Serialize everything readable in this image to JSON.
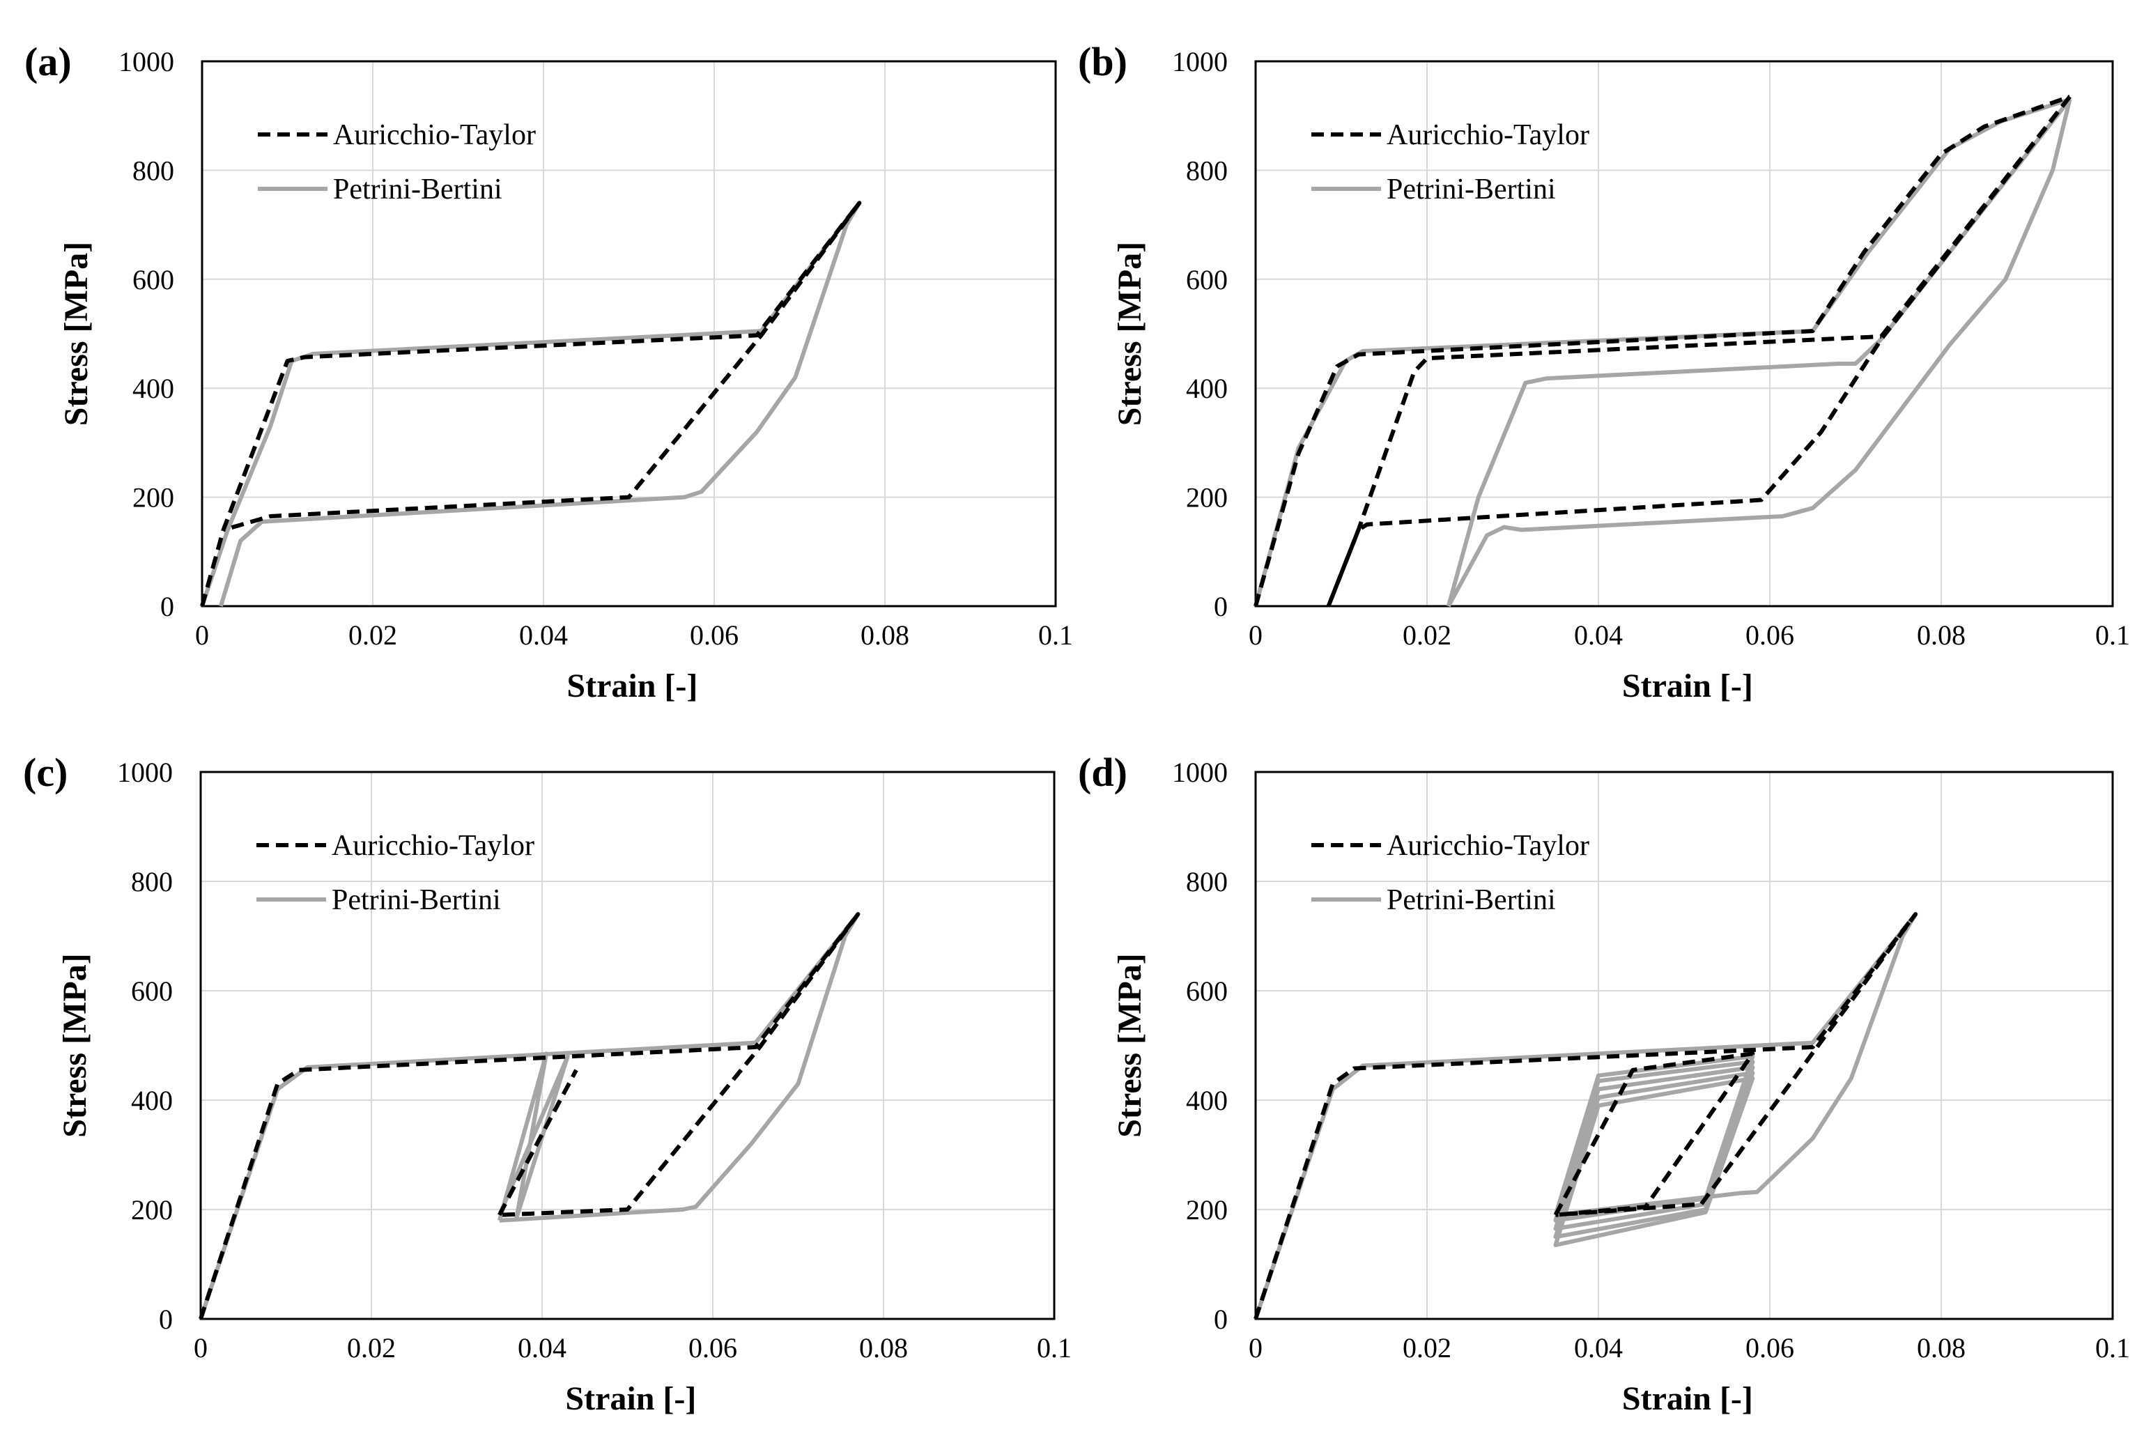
{
  "colors": {
    "auricchio": "#000000",
    "petrini": "#a6a6a6",
    "grid": "#d9d9d9",
    "frame": "#000000"
  },
  "chart_data": [
    {
      "type": "line",
      "panel_label": "(a)",
      "xlabel": "Strain [-]",
      "ylabel": "Stress [MPa]",
      "xlim": [
        0,
        0.1
      ],
      "ylim": [
        0,
        1000
      ],
      "x_ticks": [
        "0",
        "0.02",
        "0.04",
        "0.06",
        "0.08",
        "0.1"
      ],
      "y_ticks": [
        "0",
        "200",
        "400",
        "600",
        "800",
        "1000"
      ],
      "grid": true,
      "legend_position": "top-left",
      "series": [
        {
          "name": "Auricchio-Taylor",
          "style": "dashed",
          "segments": [
            [
              [
                0,
                0
              ],
              [
                0.0025,
                140
              ],
              [
                0.01,
                450
              ],
              [
                0.012,
                457
              ],
              [
                0.065,
                497
              ],
              [
                0.077,
                740
              ],
              [
                0.0655,
                497
              ],
              [
                0.05,
                200
              ],
              [
                0.008,
                165
              ],
              [
                0.0025,
                140
              ]
            ]
          ]
        },
        {
          "name": "Petrini-Bertini",
          "style": "solid",
          "segments": [
            [
              [
                0,
                0
              ],
              [
                0.003,
                140
              ],
              [
                0.008,
                330
              ],
              [
                0.0105,
                450
              ],
              [
                0.013,
                463
              ],
              [
                0.0655,
                505
              ],
              [
                0.077,
                740
              ],
              [
                0.0755,
                700
              ],
              [
                0.0695,
                420
              ],
              [
                0.065,
                320
              ],
              [
                0.0585,
                210
              ],
              [
                0.0565,
                200
              ],
              [
                0.007,
                155
              ],
              [
                0.0045,
                120
              ],
              [
                0.0022,
                0
              ]
            ]
          ]
        }
      ]
    },
    {
      "type": "line",
      "panel_label": "(b)",
      "xlabel": "Strain [-]",
      "ylabel": "Stress [MPa]",
      "xlim": [
        0,
        0.1
      ],
      "ylim": [
        0,
        1000
      ],
      "x_ticks": [
        "0",
        "0.02",
        "0.04",
        "0.06",
        "0.08",
        "0.1"
      ],
      "y_ticks": [
        "0",
        "200",
        "400",
        "600",
        "800",
        "1000"
      ],
      "grid": true,
      "legend_position": "top-left",
      "series": [
        {
          "name": "Auricchio-Taylor",
          "style": "dashed",
          "segments": [
            [
              [
                0,
                0
              ],
              [
                0.005,
                280
              ],
              [
                0.0095,
                440
              ],
              [
                0.012,
                462
              ],
              [
                0.065,
                505
              ],
              [
                0.071,
                650
              ],
              [
                0.08,
                830
              ],
              [
                0.085,
                880
              ],
              [
                0.095,
                935
              ]
            ],
            [
              [
                0.095,
                935
              ],
              [
                0.073,
                490
              ],
              [
                0.066,
                320
              ],
              [
                0.059,
                195
              ],
              [
                0.057,
                193
              ],
              [
                0.013,
                150
              ],
              [
                0.012,
                140
              ],
              [
                0.0085,
                0
              ]
            ],
            [
              [
                0.0085,
                0
              ],
              [
                0.012,
                140
              ],
              [
                0.0185,
                430
              ],
              [
                0.02,
                455
              ],
              [
                0.073,
                495
              ]
            ],
            [
              [
                0.073,
                495
              ],
              [
                0.095,
                935
              ]
            ]
          ]
        },
        {
          "name": "Petrini-Bertini",
          "style": "solid",
          "segments": [
            [
              [
                0,
                0
              ],
              [
                0.005,
                290
              ],
              [
                0.0105,
                450
              ],
              [
                0.0125,
                468
              ],
              [
                0.065,
                505
              ],
              [
                0.0715,
                650
              ],
              [
                0.081,
                840
              ],
              [
                0.087,
                890
              ],
              [
                0.095,
                930
              ]
            ],
            [
              [
                0.095,
                930
              ],
              [
                0.093,
                800
              ],
              [
                0.0875,
                600
              ],
              [
                0.081,
                480
              ],
              [
                0.07,
                250
              ],
              [
                0.065,
                180
              ],
              [
                0.0615,
                165
              ],
              [
                0.059,
                163
              ],
              [
                0.031,
                140
              ],
              [
                0.029,
                145
              ],
              [
                0.027,
                130
              ],
              [
                0.0225,
                0
              ]
            ],
            [
              [
                0.0225,
                0
              ],
              [
                0.026,
                200
              ],
              [
                0.0315,
                410
              ],
              [
                0.034,
                418
              ],
              [
                0.068,
                445
              ],
              [
                0.07,
                445
              ],
              [
                0.073,
                490
              ]
            ],
            [
              [
                0.073,
                490
              ],
              [
                0.095,
                930
              ]
            ]
          ]
        }
      ]
    },
    {
      "type": "line",
      "panel_label": "(c)",
      "xlabel": "Strain [-]",
      "ylabel": "Stress [MPa]",
      "xlim": [
        0,
        0.1
      ],
      "ylim": [
        0,
        1000
      ],
      "x_ticks": [
        "0",
        "0.02",
        "0.04",
        "0.06",
        "0.08",
        "0.1"
      ],
      "y_ticks": [
        "0",
        "200",
        "400",
        "600",
        "800",
        "1000"
      ],
      "grid": true,
      "legend_position": "top-left",
      "series": [
        {
          "name": "Auricchio-Taylor",
          "style": "dashed",
          "segments": [
            [
              [
                0,
                0
              ],
              [
                0.009,
                430
              ],
              [
                0.0115,
                455
              ],
              [
                0.065,
                497
              ],
              [
                0.077,
                740
              ],
              [
                0.0655,
                497
              ],
              [
                0.05,
                200
              ],
              [
                0.035,
                190
              ]
            ],
            [
              [
                0.035,
                190
              ],
              [
                0.037,
                250
              ],
              [
                0.044,
                455
              ]
            ]
          ]
        },
        {
          "name": "Petrini-Bertini",
          "style": "solid",
          "segments": [
            [
              [
                0,
                0
              ],
              [
                0.009,
                420
              ],
              [
                0.0125,
                460
              ],
              [
                0.065,
                505
              ],
              [
                0.077,
                740
              ],
              [
                0.0755,
                700
              ],
              [
                0.07,
                430
              ],
              [
                0.0645,
                320
              ],
              [
                0.058,
                205
              ],
              [
                0.0565,
                200
              ],
              [
                0.035,
                180
              ]
            ],
            [
              [
                0.035,
                180
              ],
              [
                0.0405,
                485
              ],
              [
                0.0405,
                485
              ],
              [
                0.037,
                185
              ]
            ],
            [
              [
                0.037,
                185
              ],
              [
                0.043,
                480
              ],
              [
                0.035,
                190
              ]
            ]
          ]
        }
      ]
    },
    {
      "type": "line",
      "panel_label": "(d)",
      "xlabel": "Strain [-]",
      "ylabel": "Stress [MPa]",
      "xlim": [
        0,
        0.1
      ],
      "ylim": [
        0,
        1000
      ],
      "x_ticks": [
        "0",
        "0.02",
        "0.04",
        "0.06",
        "0.08",
        "0.1"
      ],
      "y_ticks": [
        "0",
        "200",
        "400",
        "600",
        "800",
        "1000"
      ],
      "grid": true,
      "legend_position": "top-left",
      "series": [
        {
          "name": "Auricchio-Taylor",
          "style": "dashed",
          "segments": [
            [
              [
                0,
                0
              ],
              [
                0.009,
                430
              ],
              [
                0.0115,
                458
              ],
              [
                0.065,
                497
              ],
              [
                0.077,
                740
              ],
              [
                0.0655,
                497
              ],
              [
                0.052,
                210
              ],
              [
                0.035,
                190
              ]
            ],
            [
              [
                0.035,
                190
              ],
              [
                0.044,
                455
              ],
              [
                0.058,
                485
              ],
              [
                0.0455,
                205
              ],
              [
                0.035,
                190
              ]
            ]
          ]
        },
        {
          "name": "Petrini-Bertini",
          "style": "solid",
          "segments": [
            [
              [
                0,
                0
              ],
              [
                0.009,
                420
              ],
              [
                0.0125,
                463
              ],
              [
                0.065,
                505
              ],
              [
                0.077,
                740
              ],
              [
                0.0755,
                700
              ],
              [
                0.0695,
                440
              ],
              [
                0.065,
                330
              ],
              [
                0.0585,
                232
              ],
              [
                0.0565,
                230
              ],
              [
                0.035,
                190
              ]
            ],
            [
              [
                0.035,
                190
              ],
              [
                0.04,
                445
              ],
              [
                0.058,
                480
              ],
              [
                0.0525,
                220
              ],
              [
                0.035,
                180
              ],
              [
                0.04,
                435
              ],
              [
                0.058,
                470
              ],
              [
                0.0525,
                210
              ],
              [
                0.035,
                165
              ],
              [
                0.04,
                420
              ],
              [
                0.058,
                460
              ],
              [
                0.0525,
                200
              ],
              [
                0.035,
                150
              ],
              [
                0.04,
                405
              ],
              [
                0.058,
                450
              ],
              [
                0.0525,
                195
              ],
              [
                0.035,
                135
              ],
              [
                0.04,
                390
              ],
              [
                0.058,
                440
              ],
              [
                0.0525,
                195
              ]
            ]
          ]
        }
      ]
    }
  ]
}
